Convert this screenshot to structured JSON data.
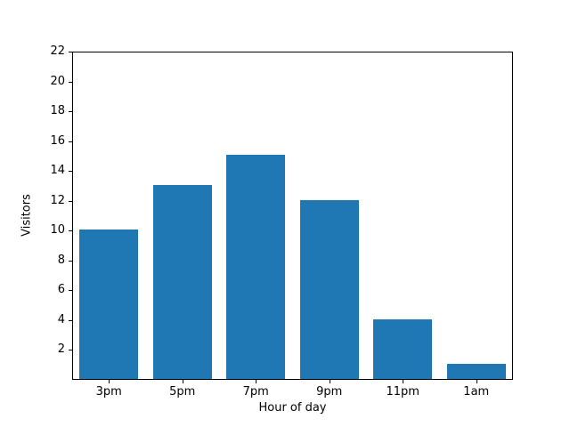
{
  "chart_data": {
    "type": "bar",
    "categories": [
      "3pm",
      "5pm",
      "7pm",
      "9pm",
      "11pm",
      "1am"
    ],
    "values": [
      10,
      13,
      15,
      12,
      4,
      1
    ],
    "title": "",
    "xlabel": "Hour of day",
    "ylabel": "Visitors",
    "ylim": [
      0,
      22
    ],
    "yticks": [
      2,
      4,
      6,
      8,
      10,
      12,
      14,
      16,
      18,
      20,
      22
    ],
    "bar_color": "#1f77b4",
    "background_color": "#ffffff",
    "spine_color": "#000000",
    "grid": false,
    "legend_position": "none",
    "bar_width_fraction": 0.8
  }
}
